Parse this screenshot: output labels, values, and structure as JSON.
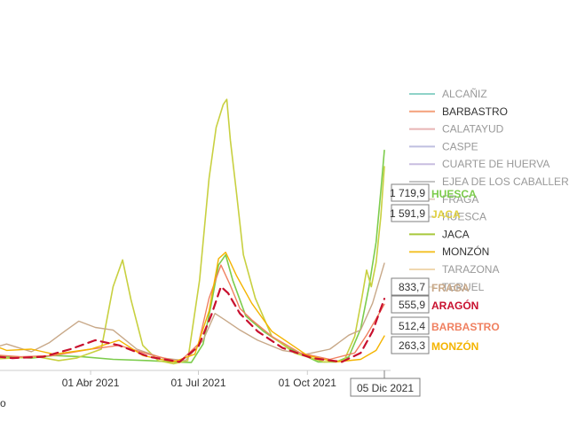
{
  "chart_data": {
    "type": "line",
    "title": "",
    "xlabel": "",
    "ylabel": "",
    "x_ticks": [
      "01 Abr 2021",
      "01 Jul 2021",
      "01 Oct 2021"
    ],
    "x_range": [
      "2021-01-01",
      "2021-12-05"
    ],
    "ylim": [
      0,
      2100
    ],
    "grid": false,
    "legend_position": "right",
    "cursor_label": "05 Dic 2021",
    "bottom_left_fragment": "o",
    "legend": [
      {
        "name": "ALCAÑIZ",
        "color": "#8fd3c8"
      },
      {
        "name": "BARBASTRO",
        "color": "#f4a07a"
      },
      {
        "name": "CALATAYUD",
        "color": "#e8b4b4"
      },
      {
        "name": "CASPE",
        "color": "#bfbfe0"
      },
      {
        "name": "CUARTE DE HUERVA",
        "color": "#c8bde0"
      },
      {
        "name": "EJEA DE LOS CABALLER",
        "color": "#c4c4c4"
      },
      {
        "name": "FRAGA",
        "color": "#e0d0c0"
      },
      {
        "name": "HUESCA",
        "color": "#d8d8d8"
      },
      {
        "name": "JACA",
        "color": "#a8c83c"
      },
      {
        "name": "MONZÓN",
        "color": "#f4c430"
      },
      {
        "name": "TARAZONA",
        "color": "#f0d8b0"
      },
      {
        "name": "TERUEL",
        "color": "#e8e0d0"
      }
    ],
    "callouts": [
      {
        "value": "1 719,9",
        "name": "HUESCA",
        "color": "#7ccc4c"
      },
      {
        "value": "1 591,9",
        "name": "JACA",
        "color": "#e0d040"
      },
      {
        "value": "833,7",
        "name": "FRAGA",
        "color": "#c8a888"
      },
      {
        "value": "555,9",
        "name": "ARAGÓN",
        "color": "#c8102e"
      },
      {
        "value": "512,4",
        "name": "BARBASTRO",
        "color": "#f08060"
      },
      {
        "value": "263,3",
        "name": "MONZÓN",
        "color": "#f4b400"
      }
    ],
    "series": [
      {
        "name": "HUESCA",
        "color": "#7ccc4c",
        "width": 1.6,
        "dash": "",
        "x": [
          "2021-01-01",
          "2021-01-20",
          "2021-02-10",
          "2021-03-01",
          "2021-03-25",
          "2021-04-20",
          "2021-05-20",
          "2021-06-10",
          "2021-06-25",
          "2021-07-05",
          "2021-07-12",
          "2021-07-18",
          "2021-07-24",
          "2021-07-30",
          "2021-08-10",
          "2021-08-25",
          "2021-09-15",
          "2021-10-10",
          "2021-10-25",
          "2021-11-05",
          "2021-11-15",
          "2021-11-22",
          "2021-11-28",
          "2021-12-02",
          "2021-12-05"
        ],
        "y": [
          120,
          100,
          90,
          110,
          100,
          80,
          70,
          60,
          55,
          200,
          520,
          820,
          900,
          700,
          420,
          300,
          170,
          60,
          60,
          100,
          320,
          650,
          1000,
          1400,
          1719.9
        ]
      },
      {
        "name": "JACA",
        "color": "#c8d040",
        "width": 1.6,
        "dash": "",
        "x": [
          "2021-01-01",
          "2021-01-25",
          "2021-02-15",
          "2021-03-05",
          "2021-03-20",
          "2021-04-10",
          "2021-04-20",
          "2021-04-28",
          "2021-05-05",
          "2021-05-15",
          "2021-05-28",
          "2021-06-10",
          "2021-06-22",
          "2021-07-02",
          "2021-07-10",
          "2021-07-16",
          "2021-07-22",
          "2021-07-25",
          "2021-07-28",
          "2021-08-02",
          "2021-08-08",
          "2021-08-18",
          "2021-09-01",
          "2021-09-20",
          "2021-10-15",
          "2021-11-01",
          "2021-11-10",
          "2021-11-16",
          "2021-11-20",
          "2021-11-24",
          "2021-11-28",
          "2021-12-02",
          "2021-12-05"
        ],
        "y": [
          80,
          90,
          100,
          70,
          90,
          160,
          650,
          860,
          550,
          190,
          70,
          45,
          70,
          700,
          1500,
          1900,
          2080,
          2120,
          1800,
          1400,
          900,
          560,
          260,
          130,
          60,
          70,
          260,
          560,
          780,
          650,
          840,
          1200,
          1591.9
        ]
      },
      {
        "name": "FRAGA",
        "color": "#c8a888",
        "width": 1.4,
        "dash": "",
        "x": [
          "2021-01-01",
          "2021-01-20",
          "2021-02-10",
          "2021-02-25",
          "2021-03-10",
          "2021-03-22",
          "2021-04-05",
          "2021-04-20",
          "2021-05-10",
          "2021-06-01",
          "2021-06-20",
          "2021-07-05",
          "2021-07-15",
          "2021-07-25",
          "2021-08-05",
          "2021-08-20",
          "2021-09-10",
          "2021-09-30",
          "2021-10-20",
          "2021-11-05",
          "2021-11-15",
          "2021-11-25",
          "2021-12-05"
        ],
        "y": [
          150,
          200,
          140,
          210,
          300,
          380,
          330,
          310,
          160,
          90,
          70,
          230,
          440,
          380,
          310,
          230,
          150,
          120,
          160,
          270,
          310,
          520,
          833.7
        ]
      },
      {
        "name": "BARBASTRO",
        "color": "#f08060",
        "width": 1.4,
        "dash": "",
        "x": [
          "2021-01-01",
          "2021-02-01",
          "2021-03-01",
          "2021-04-01",
          "2021-04-25",
          "2021-05-20",
          "2021-06-15",
          "2021-07-01",
          "2021-07-10",
          "2021-07-20",
          "2021-07-28",
          "2021-08-05",
          "2021-08-15",
          "2021-09-01",
          "2021-09-25",
          "2021-10-20",
          "2021-11-10",
          "2021-11-20",
          "2021-11-30",
          "2021-12-05"
        ],
        "y": [
          120,
          100,
          110,
          160,
          190,
          120,
          60,
          200,
          560,
          820,
          660,
          480,
          390,
          260,
          130,
          80,
          130,
          270,
          430,
          512.4
        ]
      },
      {
        "name": "MONZÓN",
        "color": "#f4b400",
        "width": 1.4,
        "dash": "",
        "x": [
          "2021-01-01",
          "2021-01-20",
          "2021-02-10",
          "2021-03-01",
          "2021-04-01",
          "2021-04-25",
          "2021-05-15",
          "2021-06-10",
          "2021-06-28",
          "2021-07-10",
          "2021-07-18",
          "2021-07-24",
          "2021-08-02",
          "2021-08-15",
          "2021-09-01",
          "2021-10-01",
          "2021-10-25",
          "2021-11-15",
          "2021-11-28",
          "2021-12-05"
        ],
        "y": [
          220,
          150,
          160,
          120,
          160,
          230,
          110,
          60,
          120,
          460,
          870,
          920,
          740,
          520,
          300,
          110,
          60,
          80,
          150,
          263.3
        ]
      },
      {
        "name": "ARAGÓN",
        "color": "#c8102e",
        "width": 2.2,
        "dash": "9,6",
        "x": [
          "2021-01-01",
          "2021-01-25",
          "2021-02-20",
          "2021-03-15",
          "2021-04-05",
          "2021-04-25",
          "2021-05-20",
          "2021-06-15",
          "2021-07-01",
          "2021-07-12",
          "2021-07-20",
          "2021-07-26",
          "2021-08-05",
          "2021-08-20",
          "2021-09-10",
          "2021-10-05",
          "2021-10-30",
          "2021-11-15",
          "2021-11-25",
          "2021-12-05"
        ],
        "y": [
          110,
          90,
          100,
          160,
          230,
          190,
          100,
          60,
          180,
          430,
          650,
          600,
          440,
          300,
          170,
          90,
          60,
          130,
          300,
          555.9
        ]
      }
    ]
  }
}
